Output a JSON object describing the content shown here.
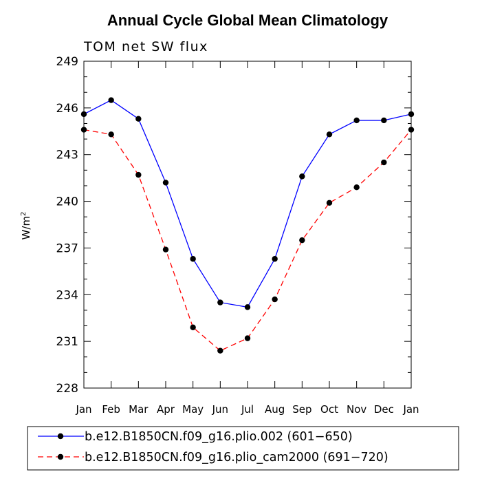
{
  "chart_data": {
    "type": "line",
    "title": "Annual Cycle Global Mean Climatology",
    "subtitle": "TOM net SW flux",
    "xlabel": "",
    "ylabel": "W/m",
    "ylabel_superscript": "2",
    "categories": [
      "Jan",
      "Feb",
      "Mar",
      "Apr",
      "May",
      "Jun",
      "Jul",
      "Aug",
      "Sep",
      "Oct",
      "Nov",
      "Dec",
      "Jan"
    ],
    "ylim": [
      228,
      249
    ],
    "yticks": [
      228,
      231,
      234,
      237,
      240,
      243,
      246,
      249
    ],
    "ytick_labels": [
      "228",
      "231",
      "234",
      "237",
      "240",
      "243",
      "246",
      "249"
    ],
    "series": [
      {
        "name": "b.e12.B1850CN.f09_g16.plio.002 (601−650)",
        "color": "#0000ff",
        "dash": "solid",
        "values": [
          245.6,
          246.5,
          245.3,
          241.2,
          236.3,
          233.5,
          233.2,
          236.3,
          241.6,
          244.3,
          245.2,
          245.2,
          245.6
        ]
      },
      {
        "name": "b.e12.B1850CN.f09_g16.plio_cam2000 (691−720)",
        "color": "#ff0000",
        "dash": "dashed",
        "values": [
          244.6,
          244.3,
          241.7,
          236.9,
          231.9,
          230.4,
          231.2,
          233.7,
          237.5,
          239.9,
          240.9,
          242.5,
          244.6
        ]
      }
    ],
    "legend_position": "bottom"
  }
}
